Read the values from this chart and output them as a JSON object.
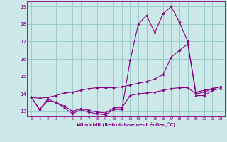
{
  "xlabel": "Windchill (Refroidissement éolien,°C)",
  "background_color": "#cce8e8",
  "grid_color": "#99cccc",
  "line_color": "#880088",
  "x_values": [
    0,
    1,
    2,
    3,
    4,
    5,
    6,
    7,
    8,
    9,
    10,
    11,
    12,
    13,
    14,
    15,
    16,
    17,
    18,
    19,
    20,
    21,
    22,
    23
  ],
  "series1": [
    13.8,
    13.1,
    13.7,
    13.5,
    13.2,
    12.85,
    13.1,
    12.95,
    12.85,
    12.8,
    13.1,
    13.1,
    15.9,
    18.0,
    18.5,
    17.5,
    18.6,
    19.0,
    18.1,
    17.0,
    13.9,
    13.9,
    14.2,
    14.3
  ],
  "series2": [
    13.8,
    13.1,
    13.6,
    13.5,
    13.3,
    13.0,
    13.15,
    13.05,
    12.95,
    12.9,
    13.2,
    13.2,
    13.9,
    14.0,
    14.05,
    14.1,
    14.2,
    14.3,
    14.35,
    14.35,
    14.0,
    14.1,
    14.3,
    14.4
  ],
  "series3": [
    13.8,
    13.75,
    13.8,
    13.9,
    14.05,
    14.1,
    14.2,
    14.3,
    14.35,
    14.35,
    14.35,
    14.4,
    14.5,
    14.6,
    14.7,
    14.85,
    15.1,
    16.1,
    16.5,
    16.85,
    14.1,
    14.2,
    14.3,
    14.4
  ],
  "ylim": [
    12.7,
    19.3
  ],
  "yticks": [
    13,
    14,
    15,
    16,
    17,
    18,
    19
  ],
  "xlim": [
    -0.5,
    23.5
  ],
  "xticks": [
    0,
    1,
    2,
    3,
    4,
    5,
    6,
    7,
    8,
    9,
    10,
    11,
    12,
    13,
    14,
    15,
    16,
    17,
    18,
    19,
    20,
    21,
    22,
    23
  ]
}
